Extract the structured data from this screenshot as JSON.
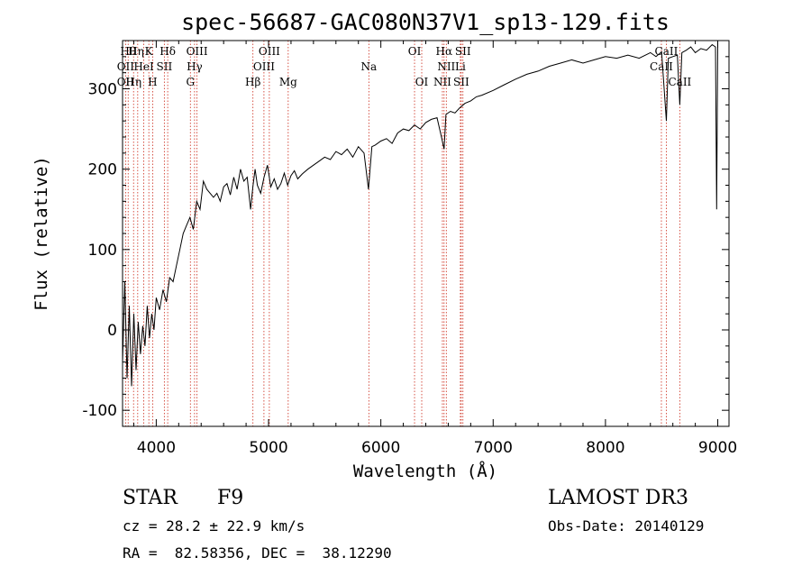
{
  "chart_data": {
    "type": "line",
    "title": "spec-56687-GAC080N37V1_sp13-129.fits",
    "xlabel": "Wavelength (Å)",
    "ylabel": "Flux (relative)",
    "xlim": [
      3700,
      9100
    ],
    "ylim": [
      -120,
      360
    ],
    "xticks": [
      4000,
      5000,
      6000,
      7000,
      8000,
      9000
    ],
    "yticks": [
      -100,
      0,
      100,
      200,
      300
    ],
    "series": [
      {
        "name": "flux",
        "x": [
          3700,
          3720,
          3740,
          3760,
          3780,
          3800,
          3820,
          3840,
          3860,
          3880,
          3900,
          3920,
          3940,
          3960,
          3980,
          4000,
          4030,
          4060,
          4090,
          4120,
          4150,
          4180,
          4210,
          4240,
          4270,
          4300,
          4330,
          4360,
          4390,
          4420,
          4450,
          4480,
          4510,
          4540,
          4570,
          4600,
          4630,
          4660,
          4690,
          4720,
          4750,
          4780,
          4810,
          4840,
          4860,
          4880,
          4900,
          4930,
          4960,
          4990,
          5020,
          5050,
          5080,
          5110,
          5140,
          5170,
          5200,
          5230,
          5260,
          5300,
          5350,
          5400,
          5450,
          5500,
          5550,
          5600,
          5650,
          5700,
          5750,
          5800,
          5850,
          5890,
          5920,
          5950,
          6000,
          6050,
          6100,
          6150,
          6200,
          6250,
          6300,
          6350,
          6400,
          6450,
          6500,
          6540,
          6563,
          6580,
          6620,
          6660,
          6700,
          6750,
          6800,
          6850,
          6900,
          7000,
          7100,
          7200,
          7300,
          7400,
          7500,
          7600,
          7700,
          7800,
          7900,
          8000,
          8100,
          8200,
          8300,
          8400,
          8450,
          8500,
          8542,
          8560,
          8600,
          8640,
          8662,
          8680,
          8720,
          8760,
          8800,
          8850,
          8900,
          8950,
          8980,
          8990,
          9000
        ],
        "y": [
          -40,
          60,
          -60,
          30,
          -70,
          20,
          -50,
          10,
          -30,
          5,
          -20,
          30,
          -10,
          20,
          0,
          40,
          25,
          50,
          35,
          65,
          60,
          80,
          100,
          120,
          130,
          140,
          125,
          160,
          150,
          185,
          175,
          170,
          165,
          170,
          160,
          178,
          182,
          168,
          190,
          175,
          200,
          185,
          190,
          150,
          178,
          200,
          180,
          170,
          190,
          205,
          178,
          188,
          175,
          182,
          195,
          180,
          192,
          198,
          188,
          194,
          200,
          205,
          210,
          215,
          212,
          222,
          218,
          225,
          215,
          228,
          220,
          175,
          228,
          230,
          235,
          238,
          232,
          245,
          250,
          248,
          255,
          250,
          258,
          262,
          264,
          240,
          225,
          268,
          272,
          270,
          276,
          282,
          285,
          290,
          292,
          298,
          305,
          312,
          318,
          322,
          328,
          332,
          336,
          332,
          336,
          340,
          338,
          342,
          338,
          345,
          340,
          346,
          260,
          338,
          340,
          342,
          280,
          345,
          348,
          352,
          345,
          350,
          348,
          355,
          352,
          150,
          360
        ]
      }
    ],
    "lines": {
      "label_rows_top": [
        {
          "wl": 3750,
          "label": "Hθ"
        },
        {
          "wl": 3820,
          "label": "Hη"
        },
        {
          "wl": 3934,
          "label": "K"
        },
        {
          "wl": 4102,
          "label": "Hδ"
        },
        {
          "wl": 4363,
          "label": "OIII"
        },
        {
          "wl": 5007,
          "label": "OIII"
        },
        {
          "wl": 6300,
          "label": "OI"
        },
        {
          "wl": 6563,
          "label": "Hα"
        },
        {
          "wl": 6731,
          "label": "SII"
        },
        {
          "wl": 8542,
          "label": "CaII"
        }
      ],
      "label_rows_mid": [
        {
          "wl": 3727,
          "label": "OII"
        },
        {
          "wl": 3889,
          "label": "HeI"
        },
        {
          "wl": 4072,
          "label": "SII"
        },
        {
          "wl": 4341,
          "label": "Hγ"
        },
        {
          "wl": 4959,
          "label": "OIII"
        },
        {
          "wl": 5893,
          "label": "Na"
        },
        {
          "wl": 6583,
          "label": "NII"
        },
        {
          "wl": 6708,
          "label": "Li"
        },
        {
          "wl": 8498,
          "label": "CaII"
        }
      ],
      "label_rows_low": [
        {
          "wl": 3727,
          "label": "OII"
        },
        {
          "wl": 3798,
          "label": "Hη"
        },
        {
          "wl": 3968,
          "label": "H"
        },
        {
          "wl": 4304,
          "label": "G"
        },
        {
          "wl": 4861,
          "label": "Hβ"
        },
        {
          "wl": 5175,
          "label": "Mg"
        },
        {
          "wl": 6364,
          "label": "OI"
        },
        {
          "wl": 6548,
          "label": "NII"
        },
        {
          "wl": 6716,
          "label": "SII"
        },
        {
          "wl": 8662,
          "label": "CaII"
        }
      ],
      "positions": [
        3727,
        3750,
        3798,
        3835,
        3889,
        3934,
        3968,
        4072,
        4102,
        4304,
        4341,
        4363,
        4861,
        4959,
        5007,
        5175,
        5893,
        6300,
        6364,
        6548,
        6563,
        6583,
        6708,
        6716,
        6731,
        8498,
        8542,
        8662
      ]
    }
  },
  "info": {
    "object_class": "STAR",
    "subclass": "F9",
    "survey": "LAMOST DR3",
    "cz": "cz = 28.2 ± 22.9 km/s",
    "obs_date": "Obs-Date: 20140129",
    "radec": "RA =  82.58356, DEC =  38.12290"
  },
  "colors": {
    "axis": "#000000",
    "spectrum": "#000000",
    "line_markers": "#cc2a1a"
  }
}
